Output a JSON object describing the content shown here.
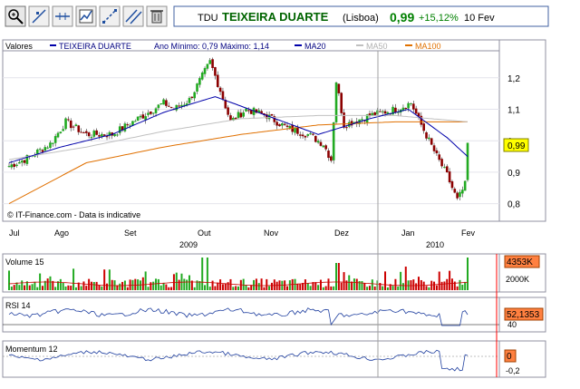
{
  "header": {
    "ticker": "TDU",
    "name": "TEIXEIRA DUARTE",
    "exchange": "(Lisboa)",
    "price": "0,99",
    "change": "+15,12%",
    "date": "10 Fev"
  },
  "toolbar": {
    "icons": [
      "zoom-icon",
      "crosshair-icon",
      "horizontal-line-icon",
      "chart-properties-icon",
      "trendline-icon",
      "parallel-lines-icon",
      "trash-icon"
    ]
  },
  "colors": {
    "up": "#22aa22",
    "down": "#8b0000",
    "ma20": "#0000aa",
    "ma50": "#c0c0c0",
    "ma100": "#e07000",
    "price_badge": "#ffff00",
    "change_green": "#008000",
    "name_green": "#006400"
  },
  "price_panel": {
    "legend": {
      "title": "Valores",
      "series": "TEIXEIRA DUARTE",
      "range": "Ano Mínimo: 0,79 Máximo: 1,14",
      "ma20": "MA20",
      "ma50": "MA50",
      "ma100": "MA100"
    },
    "y_ticks": [
      "1,2",
      "1,1",
      "1",
      "0,9",
      "0,8"
    ],
    "last_badge": "0,99",
    "watermark": "© IT-Finance.com - Data is indicative"
  },
  "x_axis": {
    "months": [
      "Jul",
      "Ago",
      "Set",
      "Out",
      "Nov",
      "Dez",
      "Jan",
      "Fev"
    ],
    "years": [
      "2009",
      "2010"
    ]
  },
  "volume_panel": {
    "title": "Volume 15",
    "badge": "4353K",
    "tick": "2000K"
  },
  "rsi_panel": {
    "title": "RSI 14",
    "badge": "52,1353",
    "tick": "40"
  },
  "momentum_panel": {
    "title": "Momentum 12",
    "badge": "0",
    "tick": "-0,2"
  },
  "chart_data": {
    "type": "candlestick",
    "x": [
      "Jul",
      "Ago",
      "Set",
      "Out",
      "Nov",
      "Dez",
      "Jan",
      "Fev"
    ],
    "ylim": [
      0.75,
      1.28
    ],
    "price_keypoints": [
      [
        0,
        0.92
      ],
      [
        6,
        0.94
      ],
      [
        16,
        0.99
      ],
      [
        22,
        1.06
      ],
      [
        30,
        1.02
      ],
      [
        40,
        1.02
      ],
      [
        50,
        1.07
      ],
      [
        60,
        1.12
      ],
      [
        64,
        1.1
      ],
      [
        70,
        1.13
      ],
      [
        76,
        1.22
      ],
      [
        78,
        1.25
      ],
      [
        82,
        1.16
      ],
      [
        86,
        1.06
      ],
      [
        92,
        1.1
      ],
      [
        100,
        1.08
      ],
      [
        108,
        1.04
      ],
      [
        116,
        1.02
      ],
      [
        122,
        0.99
      ],
      [
        125,
        0.94
      ],
      [
        127,
        1.19
      ],
      [
        130,
        1.05
      ],
      [
        140,
        1.08
      ],
      [
        150,
        1.1
      ],
      [
        156,
        1.12
      ],
      [
        160,
        1.05
      ],
      [
        166,
        0.95
      ],
      [
        170,
        0.89
      ],
      [
        174,
        0.81
      ],
      [
        177,
        0.86
      ],
      [
        178,
        0.99
      ]
    ],
    "ma20": [
      [
        0,
        0.93
      ],
      [
        20,
        0.98
      ],
      [
        40,
        1.02
      ],
      [
        60,
        1.09
      ],
      [
        80,
        1.14
      ],
      [
        100,
        1.08
      ],
      [
        120,
        1.02
      ],
      [
        140,
        1.07
      ],
      [
        155,
        1.1
      ],
      [
        170,
        1.01
      ],
      [
        178,
        0.95
      ]
    ],
    "ma50": [
      [
        0,
        0.94
      ],
      [
        30,
        0.98
      ],
      [
        60,
        1.03
      ],
      [
        90,
        1.07
      ],
      [
        120,
        1.08
      ],
      [
        150,
        1.08
      ],
      [
        178,
        1.06
      ]
    ],
    "ma100": [
      [
        0,
        0.8
      ],
      [
        30,
        0.93
      ],
      [
        60,
        0.98
      ],
      [
        90,
        1.02
      ],
      [
        120,
        1.05
      ],
      [
        150,
        1.06
      ],
      [
        178,
        1.06
      ]
    ],
    "volume_ticks": [
      "2000K"
    ],
    "rsi_ticks": [
      "40"
    ],
    "momentum_ticks": [
      "0",
      "-0,2"
    ]
  }
}
